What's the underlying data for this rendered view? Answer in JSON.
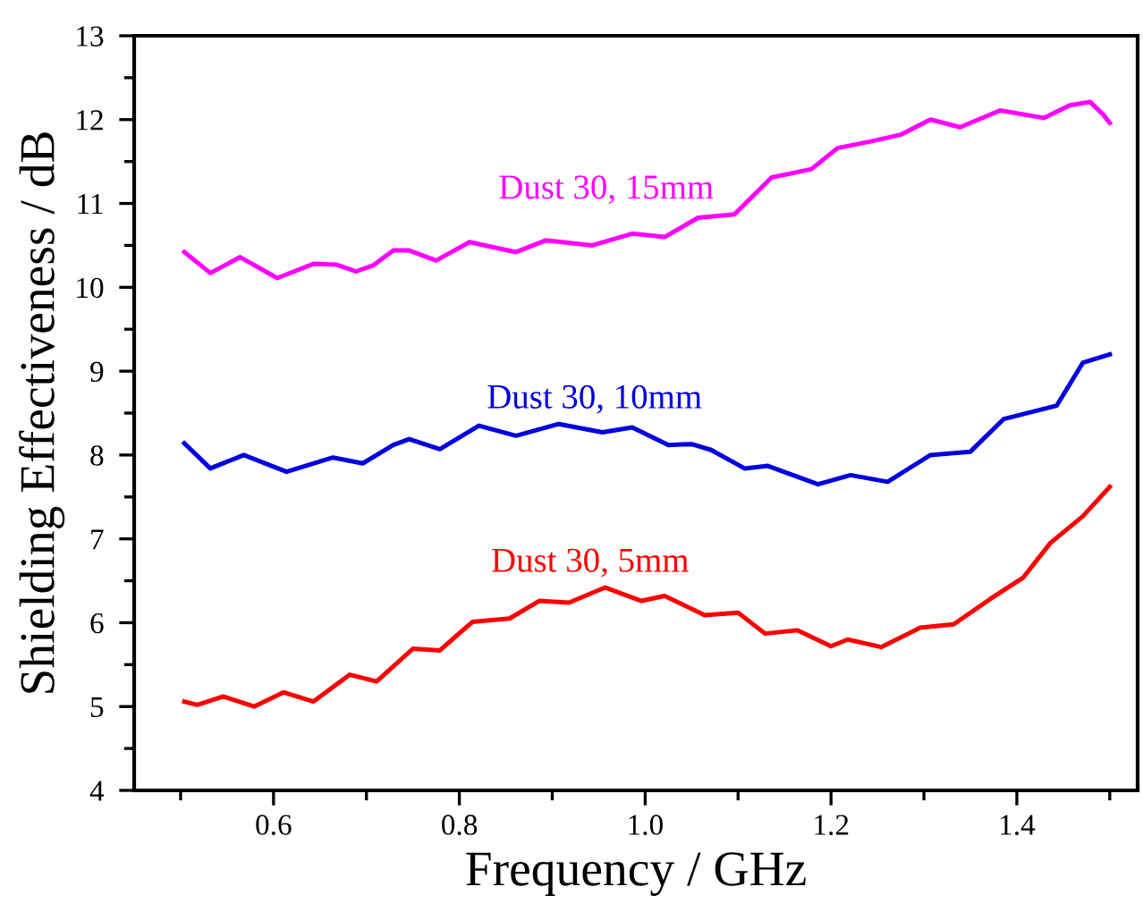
{
  "chart_data": {
    "type": "line",
    "xlabel": "Frequency / GHz",
    "ylabel": "Shielding Effectiveness / dB",
    "xlim": [
      0.45,
      1.53
    ],
    "ylim": [
      4,
      13
    ],
    "xticks": [
      {
        "value": 0.5,
        "label": null
      },
      {
        "value": 0.6,
        "label": "0.6"
      },
      {
        "value": 0.7,
        "label": null
      },
      {
        "value": 0.8,
        "label": "0.8"
      },
      {
        "value": 0.9,
        "label": null
      },
      {
        "value": 1.0,
        "label": "1.0"
      },
      {
        "value": 1.1,
        "label": null
      },
      {
        "value": 1.2,
        "label": "1.2"
      },
      {
        "value": 1.3,
        "label": null
      },
      {
        "value": 1.4,
        "label": "1.4"
      },
      {
        "value": 1.5,
        "label": null
      }
    ],
    "yticks": [
      4,
      {
        "value": 4.5,
        "label": null
      },
      5,
      {
        "value": 5.5,
        "label": null
      },
      6,
      {
        "value": 6.5,
        "label": null
      },
      7,
      {
        "value": 7.5,
        "label": null
      },
      8,
      {
        "value": 8.5,
        "label": null
      },
      9,
      {
        "value": 9.5,
        "label": null
      },
      10,
      {
        "value": 10.5,
        "label": null
      },
      11,
      {
        "value": 11.5,
        "label": null
      },
      12,
      {
        "value": 12.5,
        "label": null
      },
      13
    ],
    "grid": false,
    "legend": false,
    "marker": "none",
    "line_style": "solid",
    "series": [
      {
        "name": "Dust 30, 15mm",
        "color": "#ff00ff",
        "x": [
          0.504,
          0.532,
          0.564,
          0.604,
          0.643,
          0.668,
          0.689,
          0.707,
          0.729,
          0.746,
          0.775,
          0.811,
          0.861,
          0.893,
          0.943,
          0.986,
          1.021,
          1.057,
          1.096,
          1.136,
          1.179,
          1.207,
          1.243,
          1.275,
          1.307,
          1.339,
          1.382,
          1.429,
          1.457,
          1.479,
          1.493,
          1.5
        ],
        "values": [
          10.42,
          10.17,
          10.36,
          10.11,
          10.28,
          10.27,
          10.19,
          10.26,
          10.44,
          10.44,
          10.32,
          10.54,
          10.42,
          10.56,
          10.5,
          10.64,
          10.6,
          10.83,
          10.87,
          11.31,
          11.41,
          11.66,
          11.74,
          11.82,
          12.0,
          11.91,
          12.11,
          12.02,
          12.17,
          12.21,
          12.06,
          11.96
        ]
      },
      {
        "name": "Dust 30, 10mm",
        "color": "#0000e0",
        "x": [
          0.504,
          0.532,
          0.568,
          0.614,
          0.664,
          0.696,
          0.729,
          0.746,
          0.779,
          0.821,
          0.861,
          0.907,
          0.954,
          0.986,
          1.025,
          1.05,
          1.071,
          1.107,
          1.132,
          1.186,
          1.221,
          1.261,
          1.307,
          1.35,
          1.386,
          1.443,
          1.471,
          1.5
        ],
        "values": [
          8.14,
          7.84,
          8.0,
          7.8,
          7.97,
          7.9,
          8.12,
          8.19,
          8.07,
          8.35,
          8.23,
          8.37,
          8.27,
          8.33,
          8.12,
          8.13,
          8.06,
          7.84,
          7.87,
          7.65,
          7.76,
          7.68,
          8.0,
          8.04,
          8.43,
          8.59,
          9.1,
          9.2
        ]
      },
      {
        "name": "Dust 30, 5mm",
        "color": "#ff0000",
        "x": [
          0.504,
          0.518,
          0.546,
          0.579,
          0.611,
          0.643,
          0.682,
          0.711,
          0.75,
          0.779,
          0.814,
          0.854,
          0.886,
          0.918,
          0.957,
          0.996,
          1.021,
          1.064,
          1.1,
          1.129,
          1.164,
          1.2,
          1.218,
          1.254,
          1.296,
          1.332,
          1.371,
          1.407,
          1.436,
          1.471,
          1.5
        ],
        "values": [
          5.06,
          5.02,
          5.12,
          5.0,
          5.17,
          5.06,
          5.38,
          5.3,
          5.69,
          5.67,
          6.01,
          6.05,
          6.26,
          6.24,
          6.42,
          6.26,
          6.32,
          6.09,
          6.12,
          5.87,
          5.91,
          5.72,
          5.8,
          5.71,
          5.94,
          5.98,
          6.28,
          6.54,
          6.95,
          7.27,
          7.62
        ]
      }
    ]
  }
}
